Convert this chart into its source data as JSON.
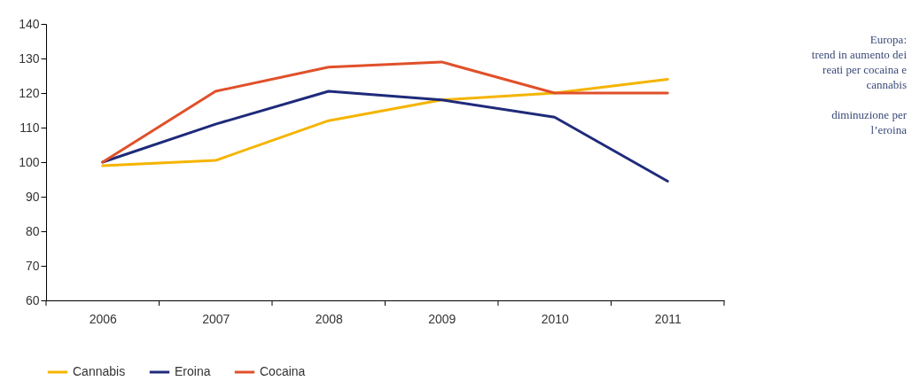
{
  "chart_data": {
    "type": "line",
    "categories": [
      "2006",
      "2007",
      "2008",
      "2009",
      "2010",
      "2011"
    ],
    "series": [
      {
        "name": "Cannabis",
        "color": "#f5b400",
        "values": [
          99,
          100.5,
          112,
          118,
          120,
          124
        ]
      },
      {
        "name": "Eroina",
        "color": "#1f2a7a",
        "values": [
          100,
          111,
          120.5,
          118,
          113,
          94.5
        ]
      },
      {
        "name": "Cocaina",
        "color": "#e0502a",
        "values": [
          100,
          120.5,
          127.5,
          129,
          120,
          120
        ]
      }
    ],
    "ylim": [
      60,
      140
    ],
    "yticks": [
      60,
      70,
      80,
      90,
      100,
      110,
      120,
      130,
      140
    ],
    "grid": false,
    "legend": "bottom",
    "annotations": [
      "Europa:\ntrend in aumento dei\nreati per cocaina e\ncannabis",
      "diminuzione per\nl’eroina"
    ]
  }
}
